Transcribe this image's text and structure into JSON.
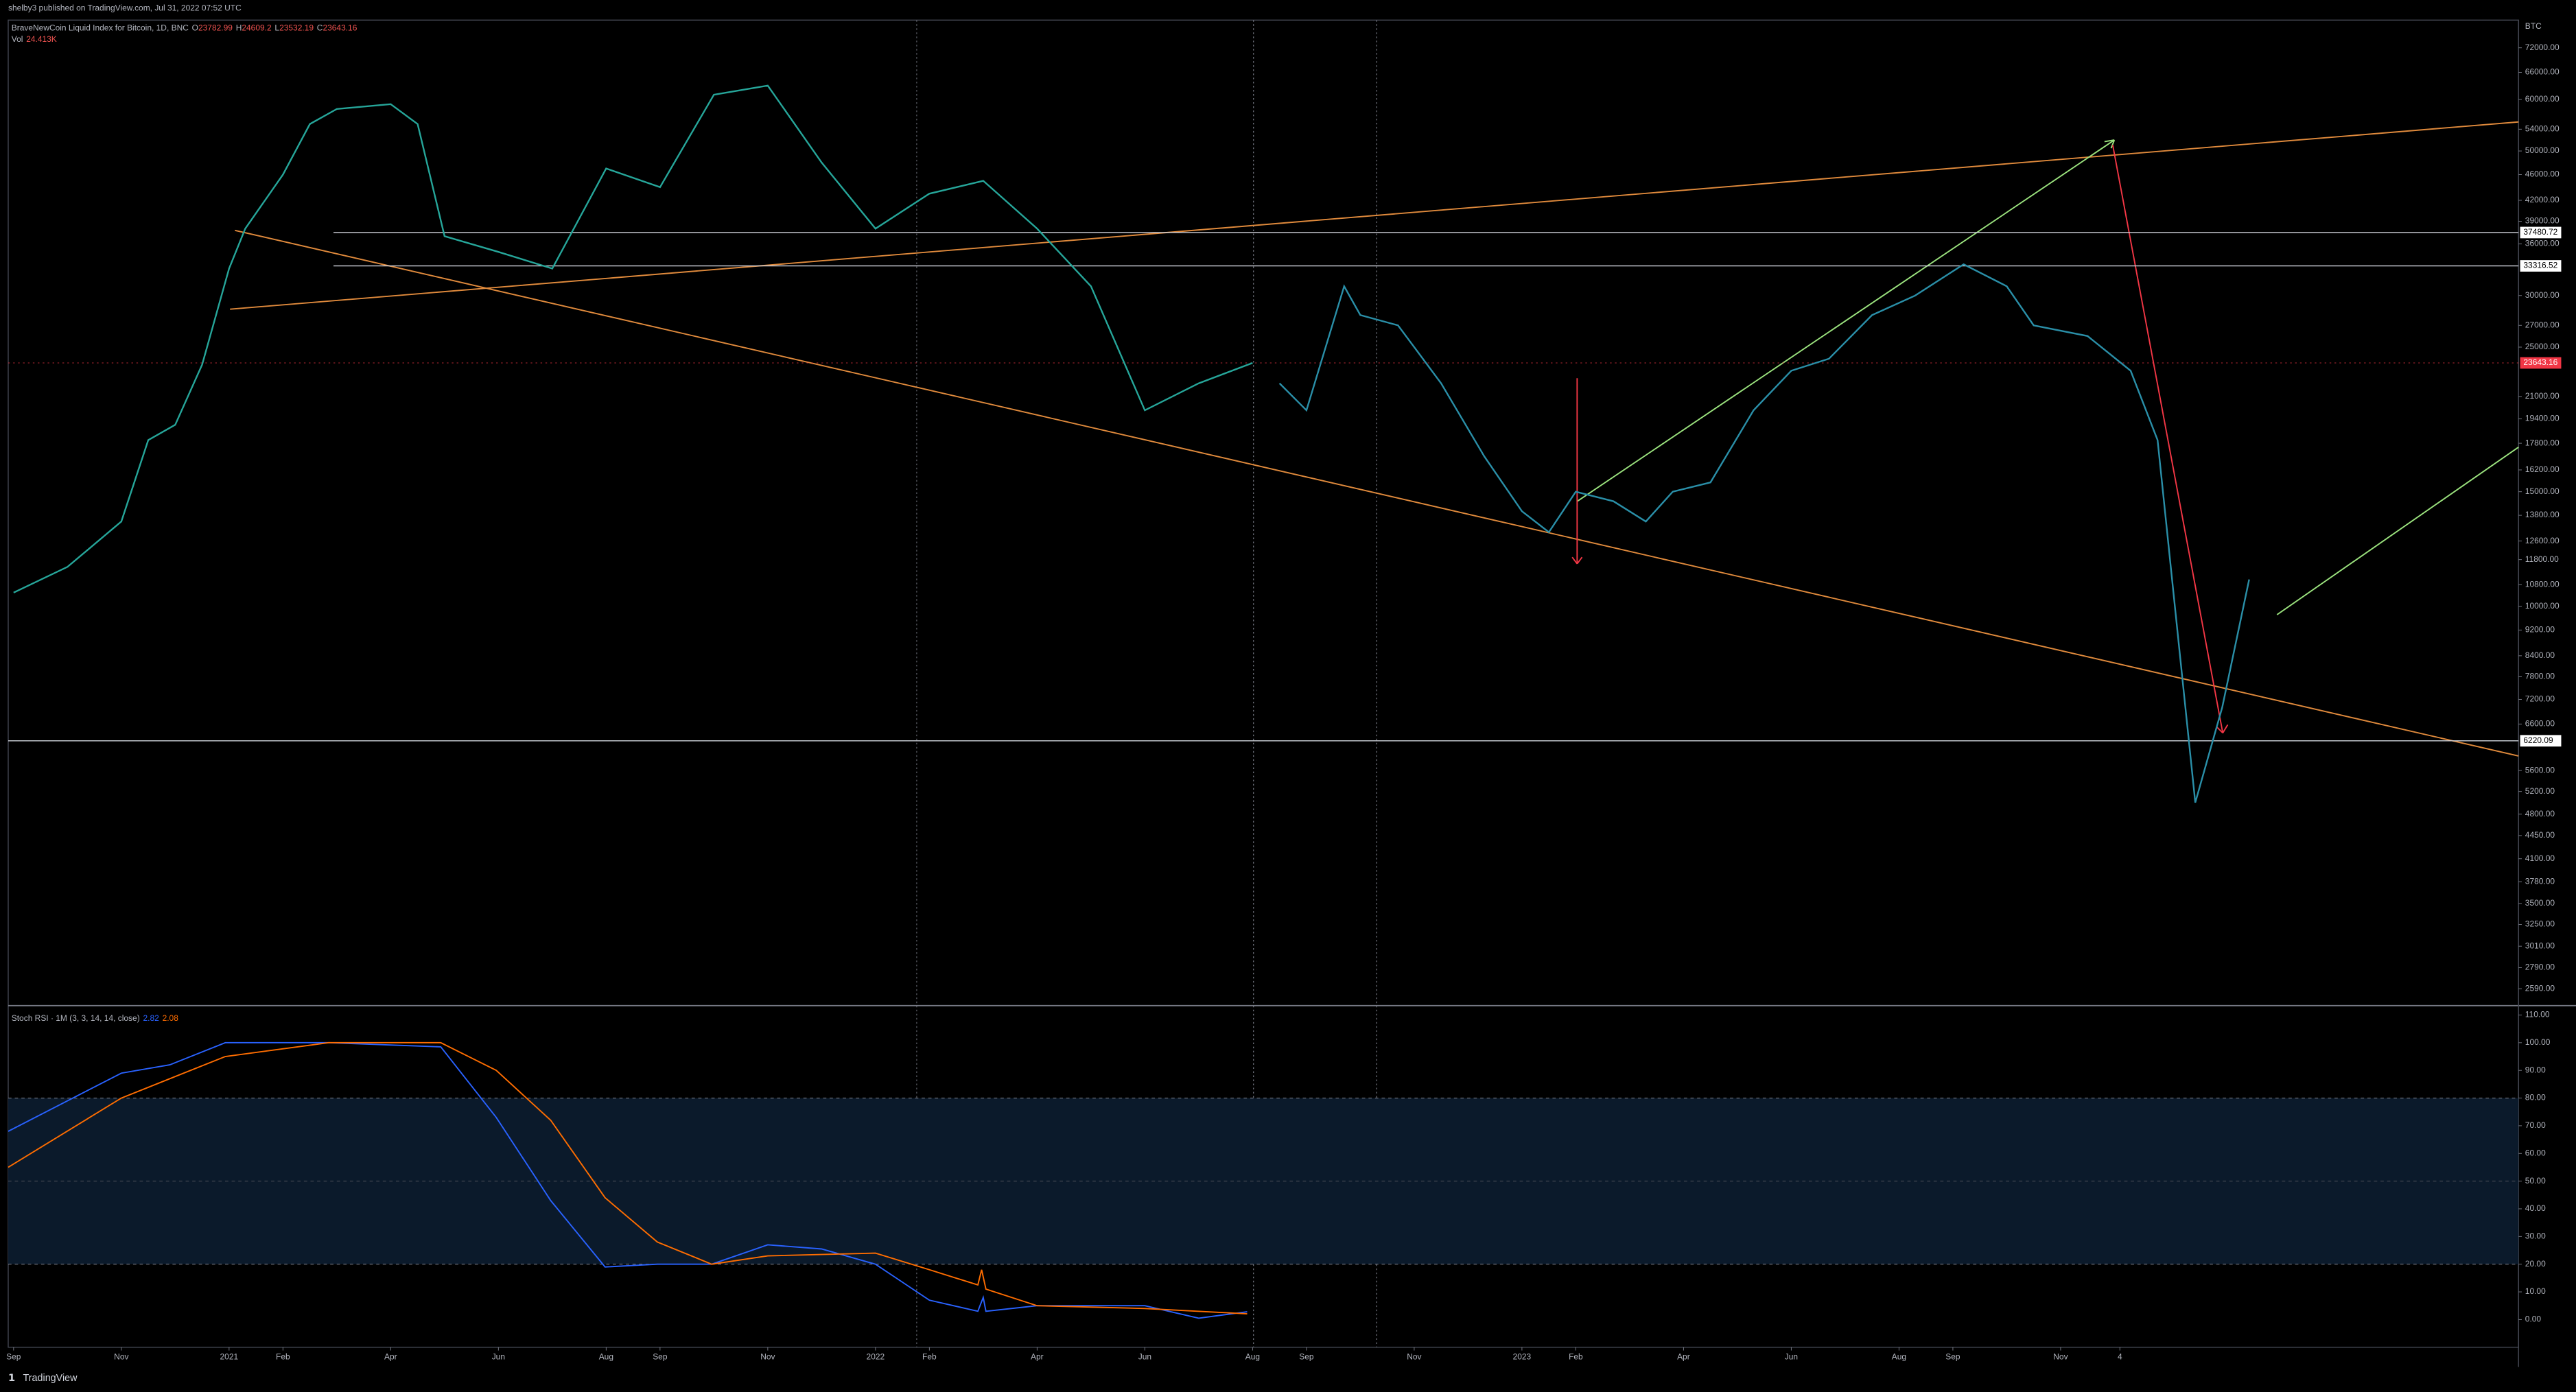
{
  "header": "shelby3 published on TradingView.com, Jul 31, 2022 07:52 UTC",
  "footer": "TradingView",
  "chart_data": [
    {
      "type": "line",
      "title": "BraveNewCoin Liquid Index for Bitcoin, 1D, BNC",
      "ohlc": [
        {
          "label": "O",
          "value": 23782.99
        },
        {
          "label": "H",
          "value": 24609.2
        },
        {
          "label": "L",
          "value": 23532.19
        },
        {
          "label": "C",
          "value": 23643.16
        }
      ],
      "volume_label": "Vol",
      "volume": "24.413K",
      "y_axis_label": "BTC",
      "log_scale": true,
      "xlim": [
        -0.1,
        46.5
      ],
      "ylim": [
        2440,
        79400
      ],
      "yticks": [
        {
          "value": 72000,
          "label": "72000.00"
        },
        {
          "value": 66000,
          "label": "66000.00"
        },
        {
          "value": 60000,
          "label": "60000.00"
        },
        {
          "value": 54000,
          "label": "54000.00"
        },
        {
          "value": 50000,
          "label": "50000.00"
        },
        {
          "value": 46000,
          "label": "46000.00"
        },
        {
          "value": 42000,
          "label": "42000.00"
        },
        {
          "value": 39000,
          "label": "39000.00"
        },
        {
          "value": 36000,
          "label": "36000.00"
        },
        {
          "value": 30000,
          "label": "30000.00"
        },
        {
          "value": 27000,
          "label": "27000.00"
        },
        {
          "value": 25000,
          "label": "25000.00"
        },
        {
          "value": 21000,
          "label": "21000.00"
        },
        {
          "value": 19400,
          "label": "19400.00"
        },
        {
          "value": 17800,
          "label": "17800.00"
        },
        {
          "value": 16200,
          "label": "16200.00"
        },
        {
          "value": 15000,
          "label": "15000.00"
        },
        {
          "value": 13800,
          "label": "13800.00"
        },
        {
          "value": 12600,
          "label": "12600.00"
        },
        {
          "value": 11800,
          "label": "11800.00"
        },
        {
          "value": 10800,
          "label": "10800.00"
        },
        {
          "value": 10000,
          "label": "10000.00"
        },
        {
          "value": 9200,
          "label": "9200.00"
        },
        {
          "value": 8400,
          "label": "8400.00"
        },
        {
          "value": 7800,
          "label": "7800.00"
        },
        {
          "value": 7200,
          "label": "7200.00"
        },
        {
          "value": 6600,
          "label": "6600.00"
        },
        {
          "value": 5600,
          "label": "5600.00"
        },
        {
          "value": 5200,
          "label": "5200.00"
        },
        {
          "value": 4800,
          "label": "4800.00"
        },
        {
          "value": 4450,
          "label": "4450.00"
        },
        {
          "value": 4100,
          "label": "4100.00"
        },
        {
          "value": 3780,
          "label": "3780.00"
        },
        {
          "value": 3500,
          "label": "3500.00"
        },
        {
          "value": 3250,
          "label": "3250.00"
        },
        {
          "value": 3010,
          "label": "3010.00"
        },
        {
          "value": 2790,
          "label": "2790.00"
        },
        {
          "value": 2590,
          "label": "2590.00"
        }
      ],
      "price_lines": [
        37480.72,
        33316.52,
        6220.09
      ],
      "last_price": 23643.16,
      "series": [
        {
          "color": "#26a69a",
          "x": [
            0,
            1,
            2,
            2.5,
            3,
            3.5,
            4,
            4.3,
            5,
            5.5,
            6,
            7,
            7.5,
            8,
            9,
            10,
            11,
            12,
            13,
            14,
            15,
            16,
            17,
            18,
            19,
            20,
            21,
            22,
            23
          ],
          "values": [
            10500,
            11500,
            13500,
            18000,
            19000,
            23500,
            33000,
            38000,
            46000,
            55000,
            58000,
            59000,
            55000,
            37000,
            35000,
            33000,
            47000,
            44000,
            61000,
            63000,
            48000,
            38000,
            43000,
            45000,
            38000,
            31000,
            20000,
            22000,
            23643
          ]
        },
        {
          "color": "#2a8fa8",
          "x": [
            23.5,
            24,
            24.7,
            25,
            25.7,
            26.5,
            27.3,
            28,
            28.5,
            29,
            29.7,
            30.3,
            30.8,
            31.5,
            32.3,
            33,
            33.7,
            34.5,
            35.3,
            36.2,
            37,
            37.5,
            38.5,
            39.3,
            39.8,
            40.5,
            41,
            41.5
          ],
          "values": [
            22000,
            20000,
            31000,
            28000,
            27000,
            22000,
            17000,
            14000,
            13000,
            15000,
            14500,
            13500,
            15000,
            15500,
            20000,
            23000,
            24000,
            28000,
            30000,
            33500,
            31000,
            27000,
            26000,
            23000,
            18000,
            5000,
            7000,
            11000
          ]
        }
      ]
    },
    {
      "type": "line",
      "title": "Stoch RSI · 1M (3, 3, 14, 14, close)",
      "xlim": [
        -0.1,
        46.5
      ],
      "ylim": [
        -10,
        112.8
      ],
      "band": [
        20,
        80
      ],
      "yticks": [
        {
          "value": 110,
          "label": "110.00"
        },
        {
          "value": 100,
          "label": "100.00"
        },
        {
          "value": 90,
          "label": "90.00"
        },
        {
          "value": 80,
          "label": "80.00"
        },
        {
          "value": 70,
          "label": "70.00"
        },
        {
          "value": 60,
          "label": "60.00"
        },
        {
          "value": 50,
          "label": "50.00"
        },
        {
          "value": 40,
          "label": "40.00"
        },
        {
          "value": 30,
          "label": "30.00"
        },
        {
          "value": 20,
          "label": "20.00"
        },
        {
          "value": 10,
          "label": "10.00"
        },
        {
          "value": 0,
          "label": "0.00"
        }
      ],
      "xticks": [
        {
          "value": 0,
          "label": "Sep"
        },
        {
          "value": 2,
          "label": "Nov"
        },
        {
          "value": 4,
          "label": "2021"
        },
        {
          "value": 5,
          "label": "Feb"
        },
        {
          "value": 7,
          "label": "Apr"
        },
        {
          "value": 9,
          "label": "Jun"
        },
        {
          "value": 11,
          "label": "Aug"
        },
        {
          "value": 12,
          "label": "Sep"
        },
        {
          "value": 14,
          "label": "Nov"
        },
        {
          "value": 16,
          "label": "2022"
        },
        {
          "value": 17,
          "label": "Feb"
        },
        {
          "value": 19,
          "label": "Apr"
        },
        {
          "value": 21,
          "label": "Jun"
        },
        {
          "value": 23,
          "label": "Aug"
        },
        {
          "value": 24,
          "label": "Sep"
        },
        {
          "value": 26,
          "label": "Nov"
        },
        {
          "value": 28,
          "label": "2023"
        },
        {
          "value": 29,
          "label": "Feb"
        },
        {
          "value": 31,
          "label": "Apr"
        },
        {
          "value": 33,
          "label": "Jun"
        },
        {
          "value": 35,
          "label": "Aug"
        },
        {
          "value": 36,
          "label": "Sep"
        },
        {
          "value": 38,
          "label": "Nov"
        },
        {
          "value": 39.1,
          "label": "4"
        }
      ],
      "series": [
        {
          "color": "#2962ff",
          "x": [
            -0.1,
            2,
            2.9,
            3.93,
            5.85,
            7.93,
            8.96,
            9.97,
            10.98,
            11.95,
            12.96,
            14,
            15,
            16,
            17,
            17.9,
            18,
            18.05,
            19,
            21,
            22,
            22.9
          ],
          "values": [
            68,
            89,
            92,
            100,
            100,
            98.5,
            73,
            43,
            19,
            20,
            20,
            27,
            25.5,
            20,
            7,
            3,
            8,
            3,
            5,
            5,
            0.5,
            2.82
          ]
        },
        {
          "color": "#ff6d00",
          "x": [
            -0.1,
            2,
            3.93,
            5.85,
            7.93,
            8.96,
            9.97,
            10.98,
            11.95,
            12.96,
            14,
            16,
            17,
            17.9,
            17.97,
            18.05,
            19,
            21,
            22.9
          ],
          "values": [
            55,
            80,
            95,
            100,
            100,
            90,
            72,
            44,
            28,
            20,
            23,
            24,
            18,
            12.5,
            18,
            11,
            5,
            4,
            2.08
          ]
        }
      ]
    }
  ]
}
